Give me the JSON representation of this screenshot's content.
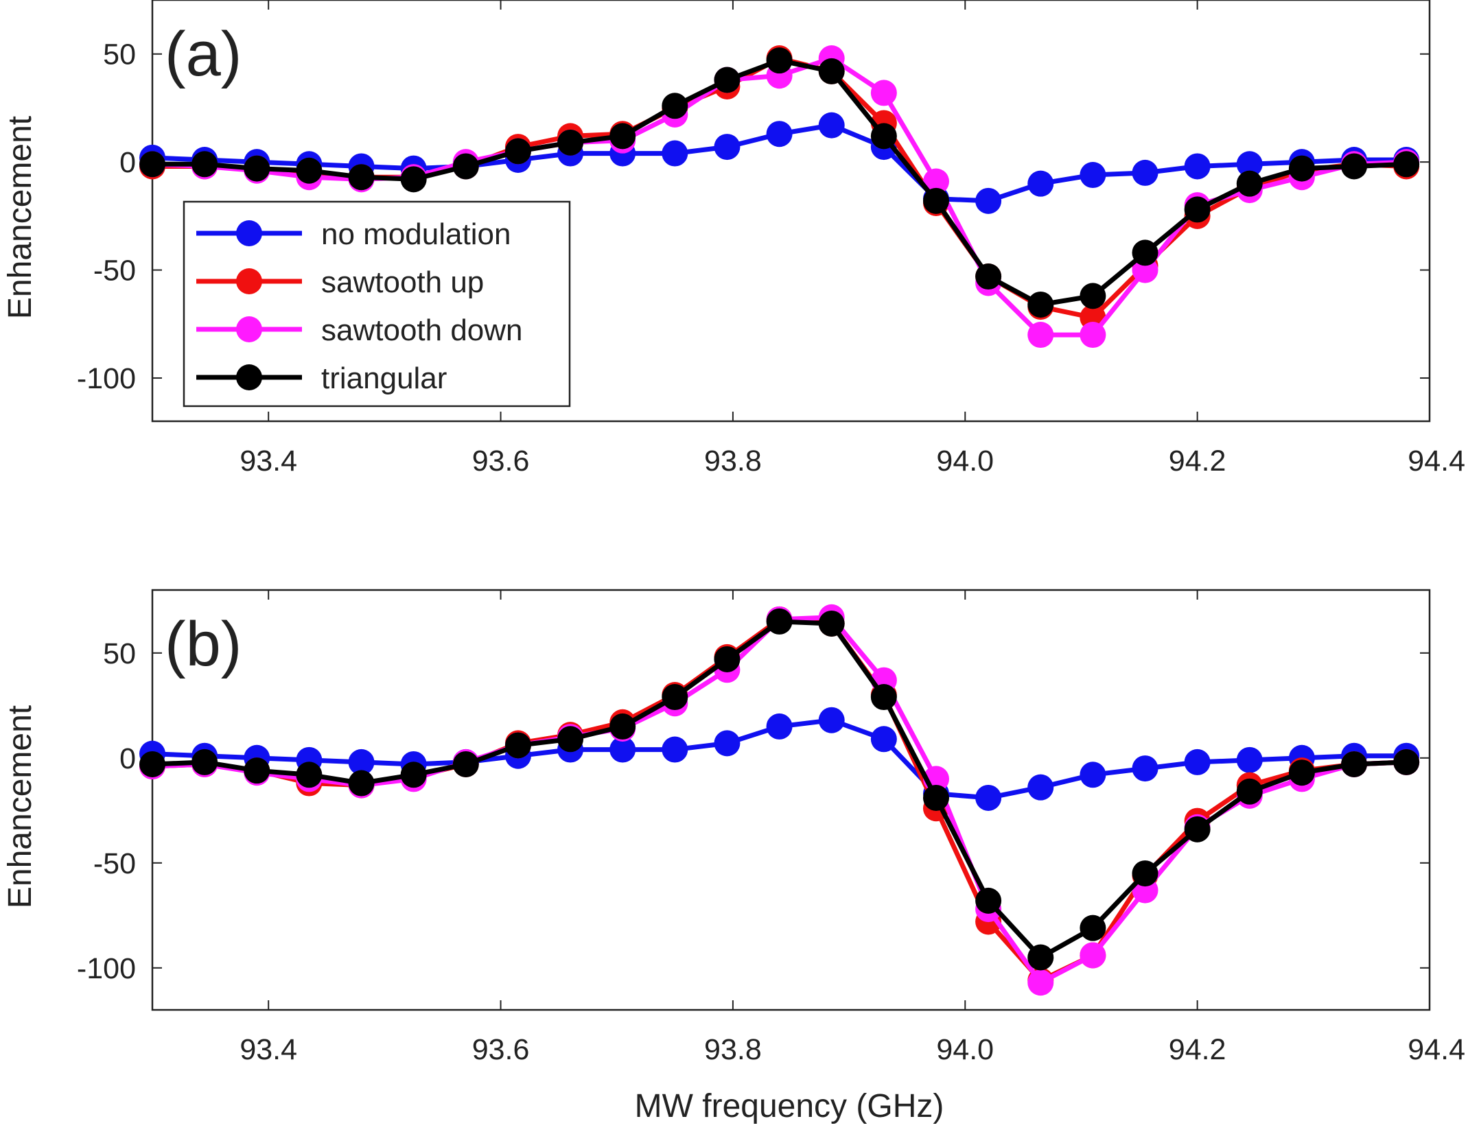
{
  "figure": {
    "xlabel": "MW frequency (GHz)",
    "ylabel": "Enhancement"
  },
  "legend": [
    {
      "name": "no modulation",
      "color": "#1010f0"
    },
    {
      "name": "sawtooth up",
      "color": "#f01010"
    },
    {
      "name": "sawtooth down",
      "color": "#ff1aff"
    },
    {
      "name": "triangular",
      "color": "#000000"
    }
  ],
  "chart_data": [
    {
      "type": "line",
      "panel_label": "(a)",
      "ylabel": "Enhancement",
      "xlabel": "",
      "xlim": [
        93.3,
        94.4
      ],
      "ylim": [
        -120,
        75
      ],
      "xticks": [
        "93.4",
        "93.6",
        "93.8",
        "94.0",
        "94.2",
        "94.4"
      ],
      "yticks": [
        "50",
        "0",
        "-50",
        "-100"
      ],
      "x": [
        93.3,
        93.345,
        93.39,
        93.435,
        93.48,
        93.525,
        93.57,
        93.615,
        93.66,
        93.705,
        93.75,
        93.795,
        93.84,
        93.885,
        93.93,
        93.975,
        94.02,
        94.065,
        94.11,
        94.155,
        94.2,
        94.245,
        94.29,
        94.335,
        94.38
      ],
      "series": [
        {
          "name": "no modulation",
          "color": "#1010f0",
          "values": [
            2,
            1,
            0,
            -1,
            -2,
            -3,
            -2,
            1,
            4,
            4,
            4,
            7,
            13,
            17,
            7,
            -17,
            -18,
            -10,
            -6,
            -5,
            -2,
            -1,
            0,
            1,
            1
          ]
        },
        {
          "name": "sawtooth up",
          "color": "#f01010",
          "values": [
            -2,
            -2,
            -3,
            -5,
            -7,
            -7,
            -2,
            7,
            12,
            13,
            25,
            35,
            48,
            42,
            18,
            -19,
            -53,
            -67,
            -72,
            -48,
            -25,
            -12,
            -4,
            -1,
            -2
          ]
        },
        {
          "name": "sawtooth down",
          "color": "#ff1aff",
          "values": [
            -1,
            -2,
            -4,
            -7,
            -8,
            -7,
            0,
            5,
            9,
            10,
            22,
            38,
            40,
            48,
            32,
            -9,
            -56,
            -80,
            -80,
            -50,
            -20,
            -13,
            -7,
            -1,
            0
          ]
        },
        {
          "name": "triangular",
          "color": "#000000",
          "values": [
            -1,
            -1,
            -3,
            -4,
            -7,
            -8,
            -2,
            5,
            9,
            12,
            26,
            38,
            47,
            42,
            12,
            -18,
            -53,
            -66,
            -62,
            -42,
            -22,
            -10,
            -3,
            -2,
            -1
          ]
        }
      ]
    },
    {
      "type": "line",
      "panel_label": "(b)",
      "ylabel": "Enhancement",
      "xlabel": "MW frequency (GHz)",
      "xlim": [
        93.3,
        94.4
      ],
      "ylim": [
        -120,
        80
      ],
      "xticks": [
        "93.4",
        "93.6",
        "93.8",
        "94.0",
        "94.2",
        "94.4"
      ],
      "yticks": [
        "50",
        "0",
        "-50",
        "-100"
      ],
      "x": [
        93.3,
        93.345,
        93.39,
        93.435,
        93.48,
        93.525,
        93.57,
        93.615,
        93.66,
        93.705,
        93.75,
        93.795,
        93.84,
        93.885,
        93.93,
        93.975,
        94.02,
        94.065,
        94.11,
        94.155,
        94.2,
        94.245,
        94.29,
        94.335,
        94.38
      ],
      "series": [
        {
          "name": "no modulation",
          "color": "#1010f0",
          "values": [
            2,
            1,
            0,
            -1,
            -2,
            -3,
            -2,
            1,
            4,
            4,
            4,
            7,
            15,
            18,
            9,
            -17,
            -19,
            -14,
            -8,
            -5,
            -2,
            -1,
            0,
            1,
            1
          ]
        },
        {
          "name": "sawtooth up",
          "color": "#f01010",
          "values": [
            -4,
            -3,
            -6,
            -12,
            -13,
            -9,
            -3,
            7,
            11,
            17,
            30,
            48,
            66,
            64,
            30,
            -24,
            -78,
            -106,
            -94,
            -56,
            -30,
            -13,
            -6,
            -3,
            -2
          ]
        },
        {
          "name": "sawtooth down",
          "color": "#ff1aff",
          "values": [
            -4,
            -3,
            -7,
            -10,
            -13,
            -10,
            -2,
            6,
            10,
            14,
            26,
            42,
            66,
            67,
            37,
            -10,
            -72,
            -107,
            -94,
            -63,
            -33,
            -18,
            -10,
            -3,
            -2
          ]
        },
        {
          "name": "triangular",
          "color": "#000000",
          "values": [
            -3,
            -2,
            -6,
            -8,
            -12,
            -8,
            -3,
            6,
            9,
            15,
            29,
            47,
            65,
            64,
            29,
            -19,
            -68,
            -95,
            -81,
            -55,
            -34,
            -16,
            -7,
            -3,
            -2
          ]
        }
      ]
    }
  ]
}
